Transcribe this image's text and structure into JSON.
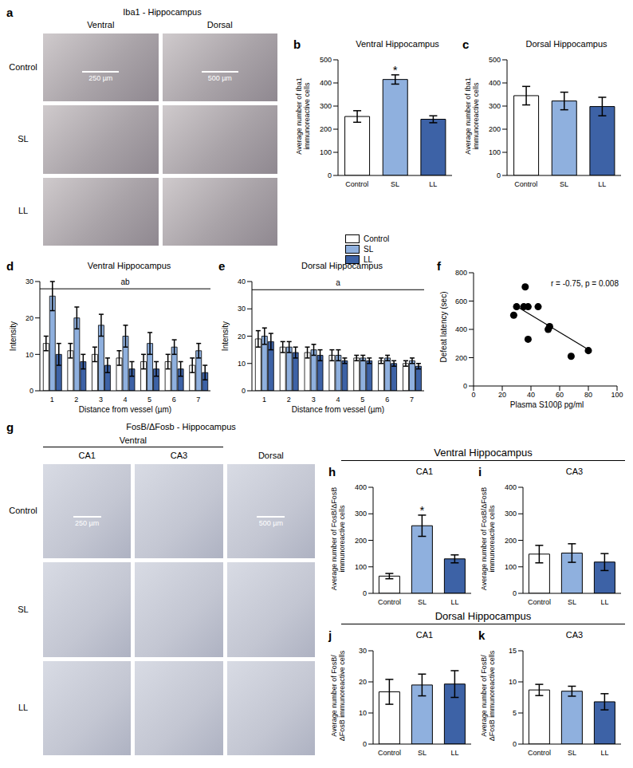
{
  "chart_data": [
    {
      "panel": "b",
      "type": "bar",
      "title": "Ventral Hippocampus",
      "ylabel": "Average number of Iba1 immunoreactive cells",
      "categories": [
        "Control",
        "SL",
        "LL"
      ],
      "values": [
        255,
        415,
        243
      ],
      "errors": [
        25,
        20,
        15
      ],
      "colors": [
        "#ffffff",
        "#8fb0de",
        "#3d62a6"
      ],
      "ylim": [
        0,
        500
      ],
      "yticks": [
        0,
        100,
        200,
        300,
        400,
        500
      ],
      "annotations": [
        {
          "text": "*",
          "category": "SL"
        }
      ]
    },
    {
      "panel": "c",
      "type": "bar",
      "title": "Dorsal Hippocampus",
      "ylabel": "Average number of Iba1 immunoreactive cells",
      "categories": [
        "Control",
        "SL",
        "LL"
      ],
      "values": [
        345,
        322,
        298
      ],
      "errors": [
        40,
        38,
        40
      ],
      "colors": [
        "#ffffff",
        "#8fb0de",
        "#3d62a6"
      ],
      "ylim": [
        0,
        500
      ],
      "yticks": [
        0,
        100,
        200,
        300,
        400,
        500
      ]
    },
    {
      "panel": "d",
      "type": "bar",
      "title": "Ventral Hippocampus",
      "ylabel": "Intensity",
      "xlabel": "Distance from vessel (µm)",
      "categories": [
        "1",
        "2",
        "3",
        "4",
        "5",
        "6",
        "7"
      ],
      "series": [
        {
          "name": "Control",
          "color": "#ffffff",
          "values": [
            13,
            11,
            10,
            9,
            8,
            8,
            7
          ],
          "errors": [
            2,
            2,
            2,
            2,
            2,
            2,
            2
          ]
        },
        {
          "name": "SL",
          "color": "#8fb0de",
          "values": [
            26,
            20,
            18,
            15,
            13,
            12,
            11
          ],
          "errors": [
            4,
            3,
            3,
            3,
            3,
            2,
            2
          ]
        },
        {
          "name": "LL",
          "color": "#3d62a6",
          "values": [
            10,
            8,
            7,
            6,
            6,
            6,
            5
          ],
          "errors": [
            3,
            2,
            2,
            2,
            2,
            2,
            2
          ]
        }
      ],
      "ylim": [
        0,
        30
      ],
      "yticks": [
        0,
        10,
        20,
        30
      ],
      "annotations": [
        {
          "text": "ab",
          "y": 28
        }
      ]
    },
    {
      "panel": "e",
      "type": "bar",
      "title": "Dorsal Hippocampus",
      "ylabel": "Intensity",
      "xlabel": "Distance from vessel (µm)",
      "categories": [
        "1",
        "2",
        "3",
        "4",
        "5",
        "6",
        "7"
      ],
      "series": [
        {
          "name": "Control",
          "color": "#ffffff",
          "values": [
            19,
            16,
            14,
            13,
            12,
            11,
            10
          ],
          "errors": [
            3,
            2,
            2,
            2,
            1,
            1,
            1
          ]
        },
        {
          "name": "SL",
          "color": "#8fb0de",
          "values": [
            20,
            16,
            15,
            13,
            12,
            12,
            11
          ],
          "errors": [
            3,
            2,
            2,
            2,
            1,
            1,
            1
          ]
        },
        {
          "name": "LL",
          "color": "#3d62a6",
          "values": [
            18,
            14,
            13,
            11,
            11,
            10,
            9
          ],
          "errors": [
            3,
            2,
            2,
            1,
            1,
            1,
            1
          ]
        }
      ],
      "ylim": [
        0,
        40
      ],
      "yticks": [
        0,
        10,
        20,
        30,
        40
      ],
      "annotations": [
        {
          "text": "a",
          "y": 37
        }
      ]
    },
    {
      "panel": "f",
      "type": "scatter",
      "xlabel": "Plasma S100β pg/ml",
      "ylabel": "Defeat latency (sec)",
      "x": [
        28,
        30,
        35,
        36,
        38,
        38,
        45,
        52,
        53,
        68,
        80
      ],
      "values": [
        500,
        560,
        560,
        700,
        560,
        330,
        560,
        400,
        420,
        210,
        250
      ],
      "color": "#000000",
      "fit_line": {
        "x": [
          28,
          82
        ],
        "values": [
          575,
          245
        ]
      },
      "annotation": "r = -0.75, p = 0.008",
      "xlim": [
        0,
        100
      ],
      "xticks": [
        0,
        20,
        40,
        60,
        80,
        100
      ],
      "ylim": [
        0,
        800
      ],
      "yticks": [
        0,
        200,
        400,
        600,
        800
      ]
    },
    {
      "panel": "h",
      "type": "bar",
      "title": "CA1",
      "ylabel": "Average number of FosB/ΔFosB immunoreactive cells",
      "categories": [
        "Control",
        "SL",
        "LL"
      ],
      "values": [
        65,
        255,
        130
      ],
      "errors": [
        10,
        40,
        15
      ],
      "colors": [
        "#ffffff",
        "#8fb0de",
        "#3d62a6"
      ],
      "ylim": [
        0,
        400
      ],
      "yticks": [
        0,
        100,
        200,
        300,
        400
      ],
      "annotations": [
        {
          "text": "*",
          "category": "SL"
        }
      ]
    },
    {
      "panel": "i",
      "type": "bar",
      "title": "CA3",
      "ylabel": "Average number of FosB/ΔFosB immunoreactive cells",
      "categories": [
        "Control",
        "SL",
        "LL"
      ],
      "values": [
        148,
        152,
        118
      ],
      "errors": [
        33,
        35,
        32
      ],
      "colors": [
        "#ffffff",
        "#8fb0de",
        "#3d62a6"
      ],
      "ylim": [
        0,
        400
      ],
      "yticks": [
        0,
        100,
        200,
        300,
        400
      ]
    },
    {
      "panel": "j",
      "type": "bar",
      "title": "CA1",
      "ylabel": "Average number of FosB/ΔFosB immunoreactive cells",
      "categories": [
        "Control",
        "SL",
        "LL"
      ],
      "values": [
        16.8,
        19,
        19.3
      ],
      "errors": [
        4,
        3.5,
        4.3
      ],
      "colors": [
        "#ffffff",
        "#8fb0de",
        "#3d62a6"
      ],
      "ylim": [
        0,
        30
      ],
      "yticks": [
        0,
        10,
        20,
        30
      ]
    },
    {
      "panel": "k",
      "type": "bar",
      "title": "CA3",
      "ylabel": "Average number of FosB/ΔFosB immunoreactive cells",
      "categories": [
        "Control",
        "SL",
        "LL"
      ],
      "values": [
        8.7,
        8.5,
        6.8
      ],
      "errors": [
        0.9,
        0.8,
        1.3
      ],
      "colors": [
        "#ffffff",
        "#8fb0de",
        "#3d62a6"
      ],
      "ylim": [
        0,
        15
      ],
      "yticks": [
        0,
        5,
        10,
        15
      ]
    }
  ],
  "images": [
    {
      "panel": "a",
      "title": "Iba1 - Hippocampus",
      "columns": [
        "Ventral",
        "Dorsal"
      ],
      "rows": [
        "Control",
        "SL",
        "LL"
      ],
      "scale_bars": [
        {
          "column": 0,
          "label": "250 µm"
        },
        {
          "column": 1,
          "label": "500 µm"
        }
      ]
    },
    {
      "panel": "g",
      "title": "FosB/ΔFosb - Hippocampus",
      "column_groups": [
        {
          "label": "Ventral",
          "span": 2
        }
      ],
      "columns": [
        "CA1",
        "CA3",
        "Dorsal"
      ],
      "rows": [
        "Control",
        "SL",
        "LL"
      ],
      "scale_bars": [
        {
          "column": 0,
          "label": "250 µm"
        },
        {
          "column": 2,
          "label": "500 µm"
        }
      ]
    }
  ],
  "section_headers": [
    {
      "text": "Ventral Hippocampus",
      "panels": [
        "h",
        "i"
      ]
    },
    {
      "text": "Dorsal Hippocampus",
      "panels": [
        "j",
        "k"
      ]
    }
  ]
}
